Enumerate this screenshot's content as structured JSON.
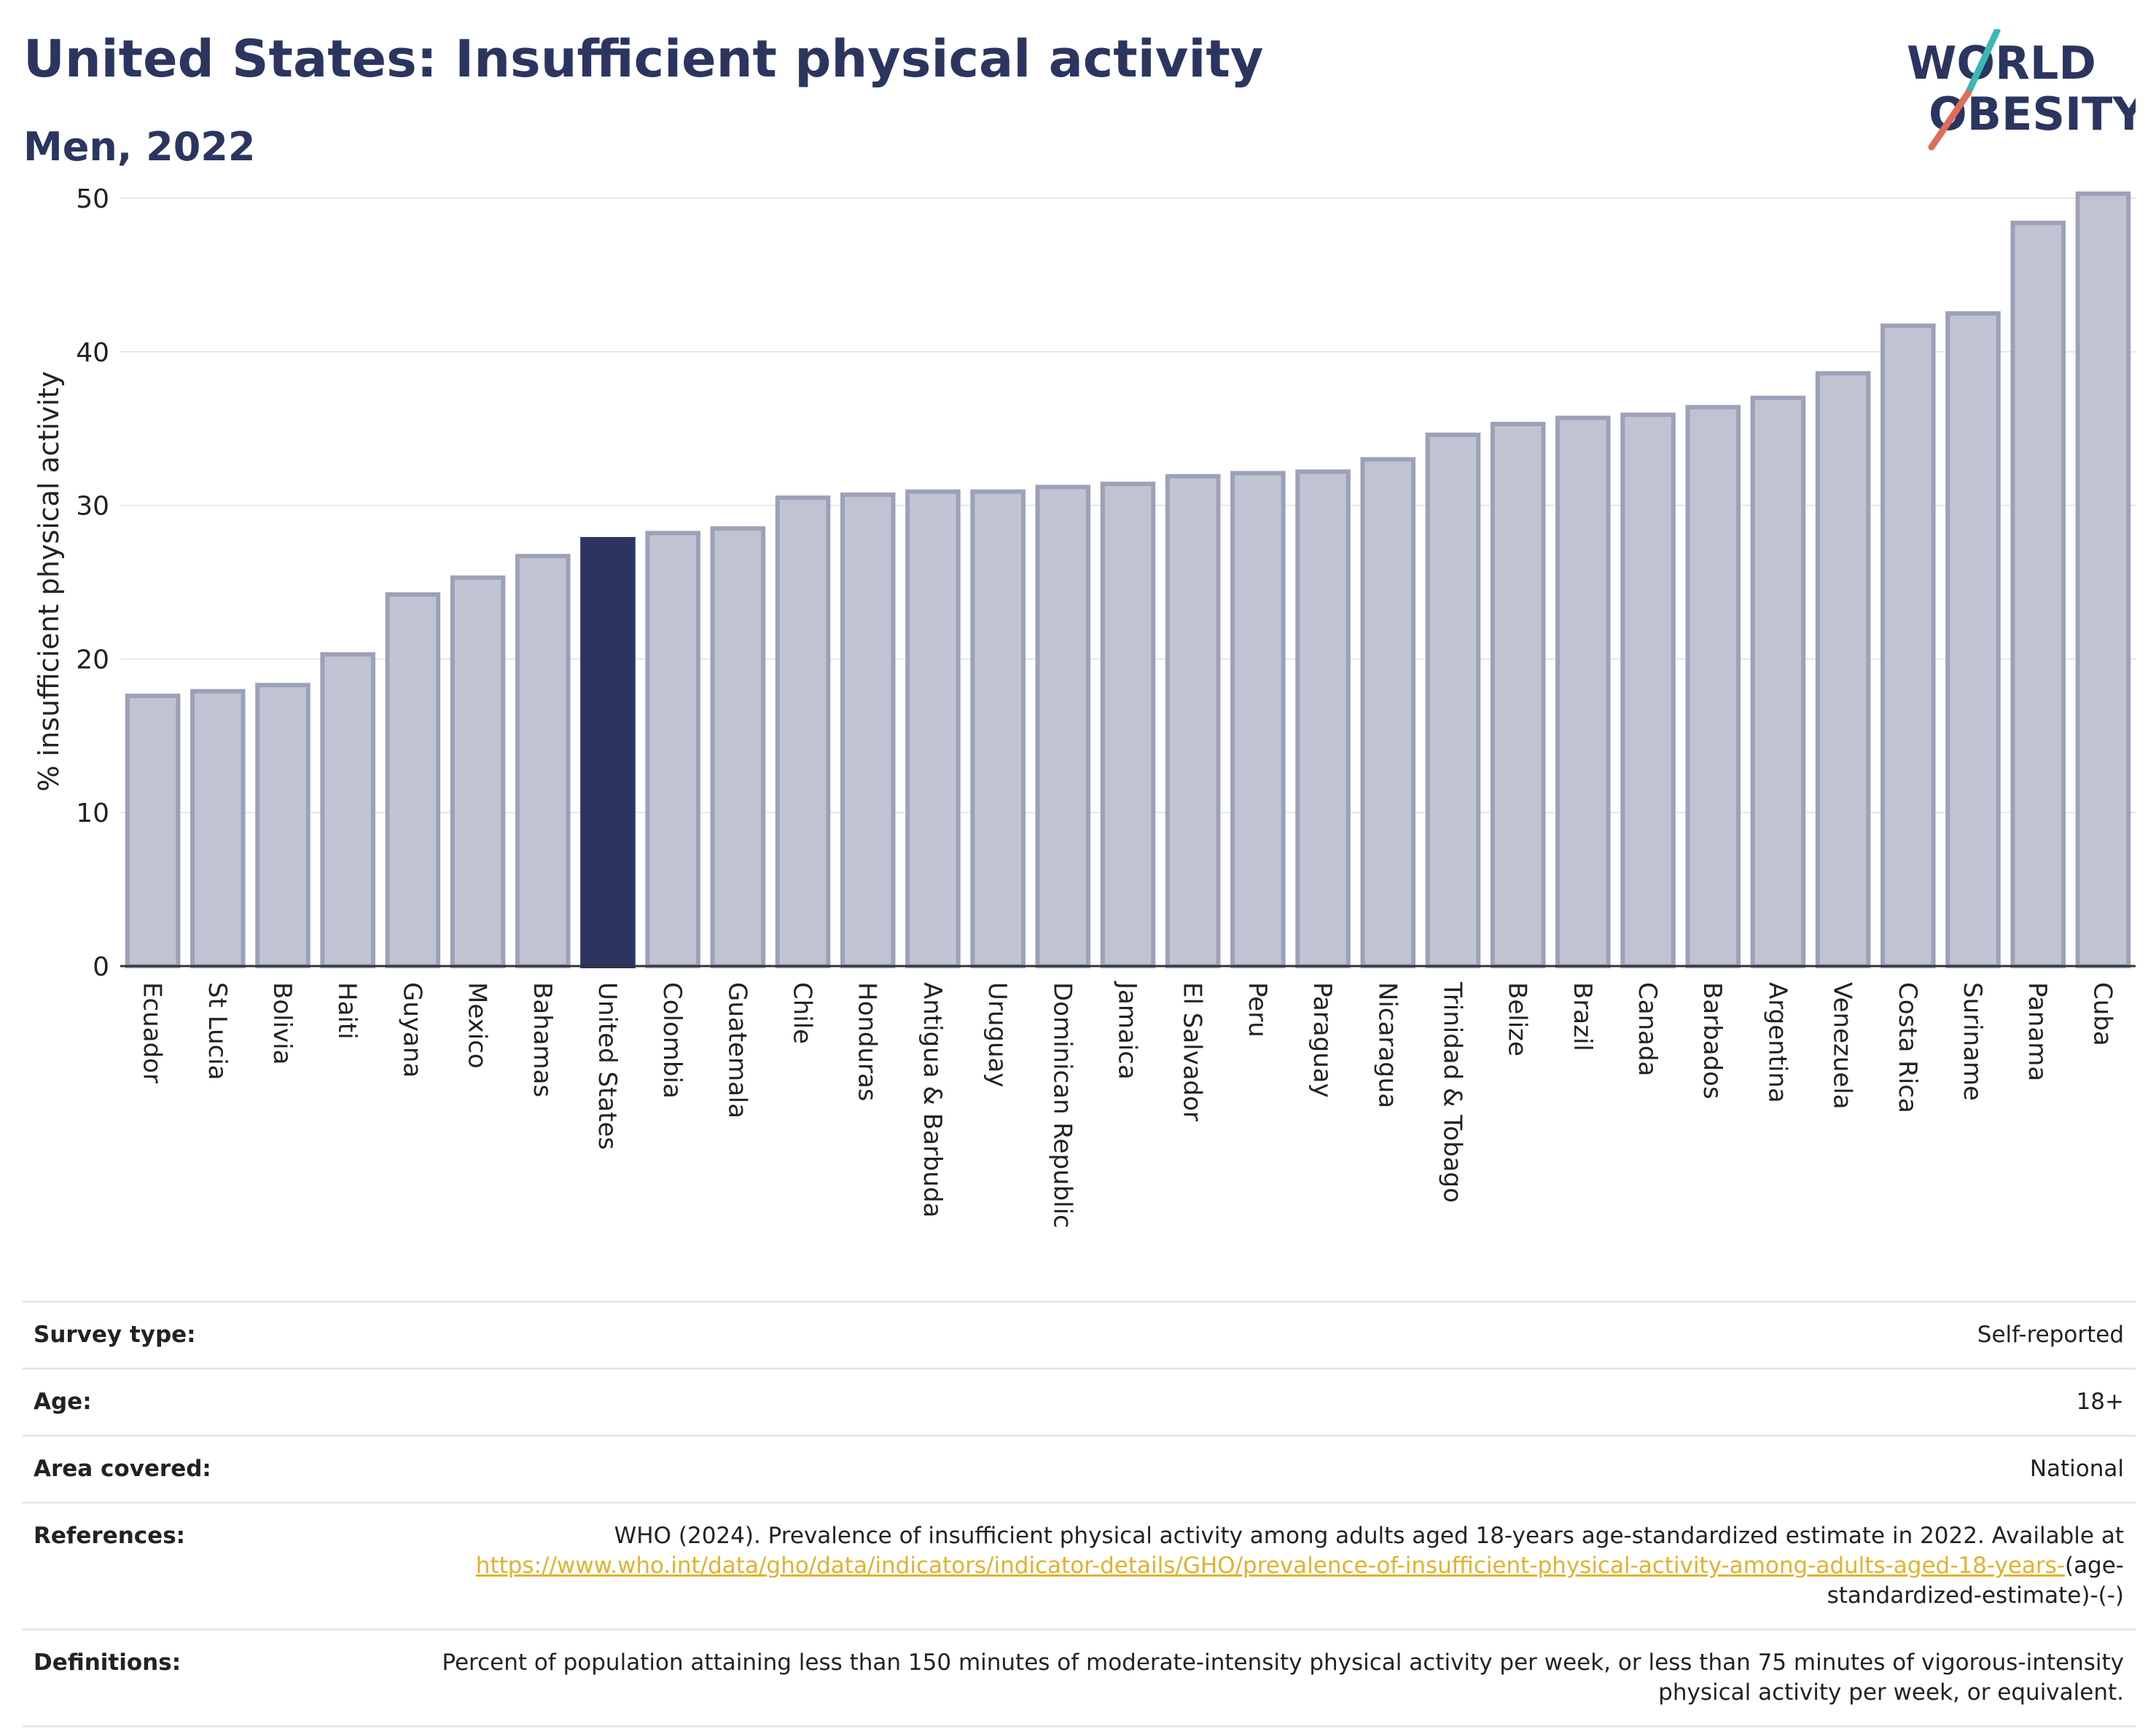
{
  "header": {
    "title": "United States: Insufficient physical activity",
    "subtitle": "Men, 2022",
    "logo_line1": "WORLD",
    "logo_line2": "OBESITY"
  },
  "colors": {
    "bar": "#c0c3d1",
    "bar_border": "#9ca1b8",
    "highlight": "#2b3560",
    "gridline": "#e6e6e6",
    "logo_teal": "#3bb8b4",
    "logo_coral": "#e06c5a"
  },
  "chart_data": {
    "type": "bar",
    "ylabel": "% insufficient physical activity",
    "ylim": [
      0,
      52
    ],
    "yticks": [
      0,
      10,
      20,
      30,
      40,
      50
    ],
    "highlight": "United States",
    "categories": [
      "Ecuador",
      "St Lucia",
      "Bolivia",
      "Haiti",
      "Guyana",
      "Mexico",
      "Bahamas",
      "United States",
      "Colombia",
      "Guatemala",
      "Chile",
      "Honduras",
      "Antigua & Barbuda",
      "Uruguay",
      "Dominican Republic",
      "Jamaica",
      "El Salvador",
      "Peru",
      "Paraguay",
      "Nicaragua",
      "Trinidad & Tobago",
      "Belize",
      "Brazil",
      "Canada",
      "Barbados",
      "Argentina",
      "Venezuela",
      "Costa Rica",
      "Suriname",
      "Panama",
      "Cuba"
    ],
    "values": [
      17.6,
      17.9,
      18.3,
      20.3,
      24.2,
      25.3,
      26.7,
      27.8,
      28.2,
      28.5,
      30.5,
      30.7,
      30.9,
      30.9,
      31.2,
      31.4,
      31.9,
      32.1,
      32.2,
      33.0,
      34.6,
      35.3,
      35.7,
      35.9,
      36.4,
      37.0,
      38.6,
      41.7,
      42.5,
      48.4,
      50.3
    ]
  },
  "meta": {
    "survey_type_label": "Survey type:",
    "survey_type_value": "Self-reported",
    "age_label": "Age:",
    "age_value": "18+",
    "area_label": "Area covered:",
    "area_value": "National",
    "references_label": "References:",
    "references_text": "WHO (2024). Prevalence of insufficient physical activity among adults aged 18-years age-standardized estimate in 2022. Available at",
    "references_link": "https://www.who.int/data/gho/data/indicators/indicator-details/GHO/prevalence-of-insufficient-physical-activity-among-adults-aged-18-years-",
    "references_tail": "(age-standardized-estimate)-(-)",
    "definitions_label": "Definitions:",
    "definitions_value": "Percent of population attaining less than 150 minutes of moderate-intensity physical activity per week, or less than 75 minutes of vigorous-intensity physical activity per week, or equivalent."
  }
}
